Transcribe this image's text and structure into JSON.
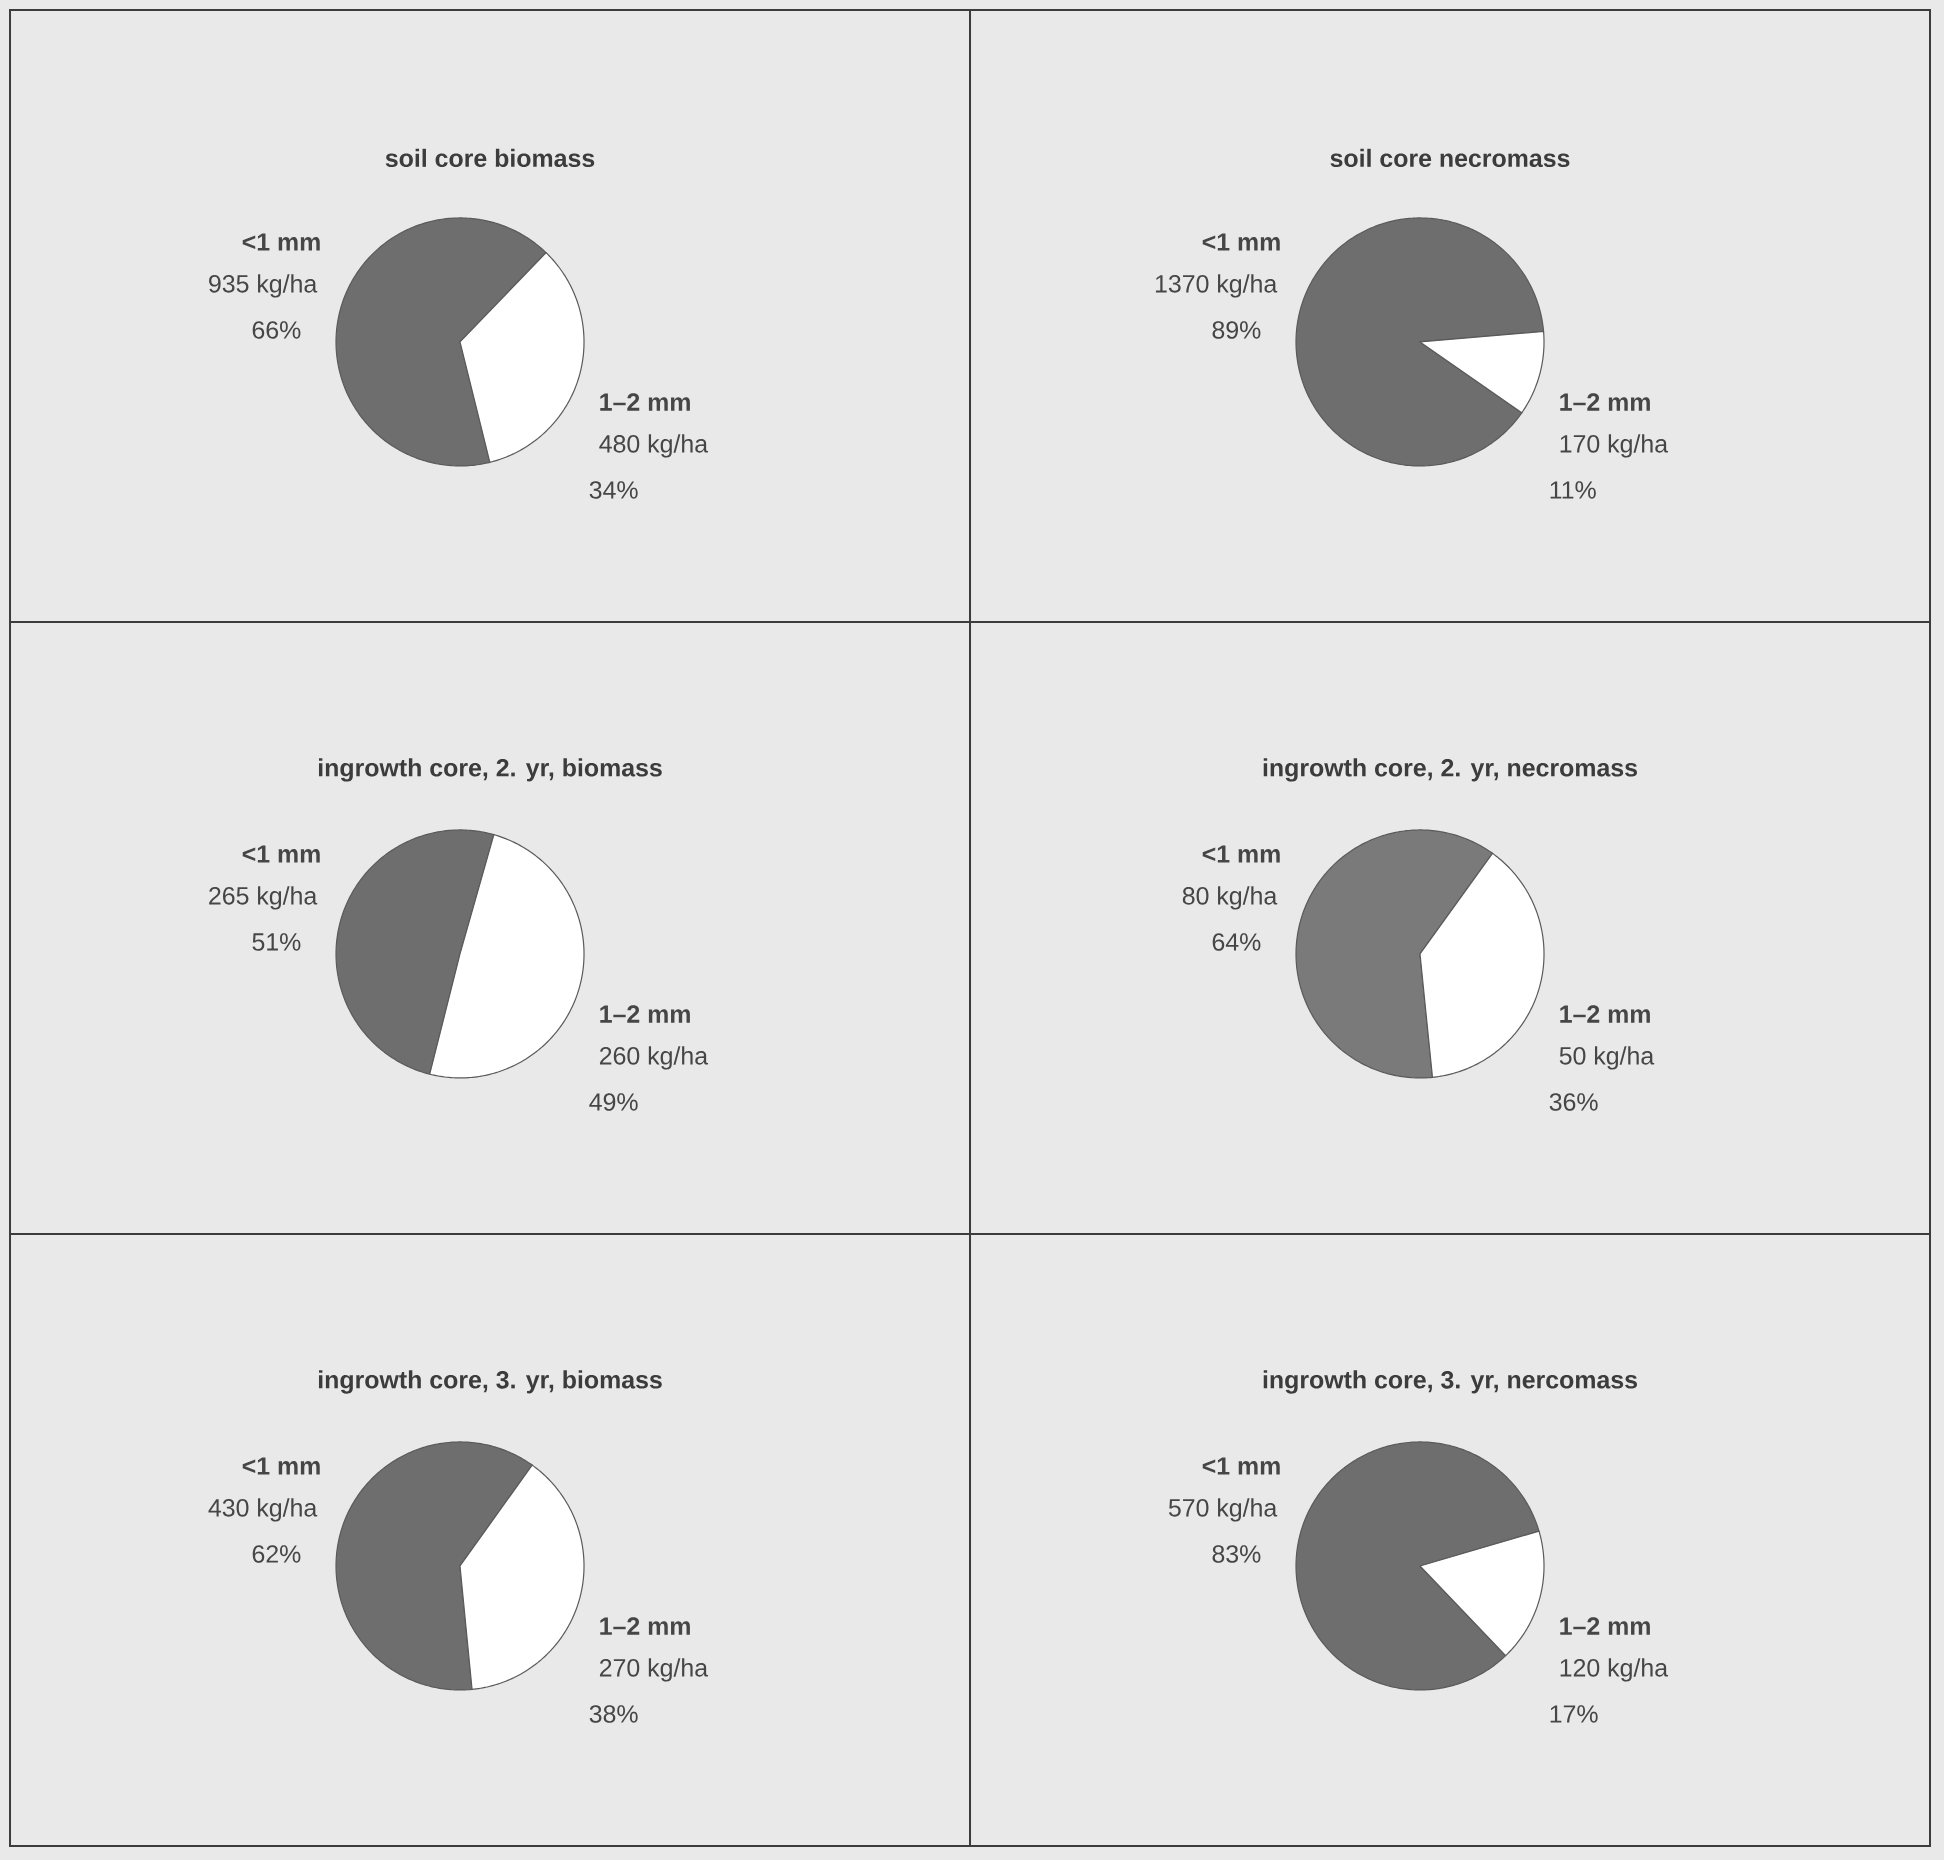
{
  "chart_data": [
    {
      "type": "pie",
      "title": "soil core biomass",
      "categories": [
        "<1 mm",
        "1–2 mm"
      ],
      "values": [
        935,
        480
      ],
      "colors": [
        "#6e6e6e",
        "#ffffff"
      ],
      "value_labels": [
        "935 kg/ha",
        "480 kg/ha"
      ],
      "annotations": [
        "66%",
        "34%"
      ]
    },
    {
      "type": "pie",
      "title": "soil core necromass",
      "categories": [
        "<1 mm",
        "1–2 mm"
      ],
      "values": [
        1370,
        170
      ],
      "colors": [
        "#6e6e6e",
        "#ffffff"
      ],
      "value_labels": [
        "1370 kg/ha",
        "170 kg/ha"
      ],
      "annotations": [
        "89%",
        "11%"
      ]
    },
    {
      "type": "pie",
      "title": "ingrowth core, 2. yr, biomass",
      "categories": [
        "<1 mm",
        "1–2 mm"
      ],
      "values": [
        265,
        260
      ],
      "colors": [
        "#6e6e6e",
        "#ffffff"
      ],
      "value_labels": [
        "265 kg/ha",
        "260 kg/ha"
      ],
      "annotations": [
        "51%",
        "49%"
      ]
    },
    {
      "type": "pie",
      "title": "ingrowth core, 2. yr, necromass",
      "categories": [
        "<1 mm",
        "1–2 mm"
      ],
      "values": [
        80,
        50
      ],
      "colors": [
        "#7a7a7a",
        "#ffffff"
      ],
      "value_labels": [
        "80 kg/ha",
        "50 kg/ha"
      ],
      "annotations": [
        "64%",
        "36%"
      ]
    },
    {
      "type": "pie",
      "title": "ingrowth core, 3. yr, biomass",
      "categories": [
        "<1 mm",
        "1–2 mm"
      ],
      "values": [
        430,
        270
      ],
      "colors": [
        "#6e6e6e",
        "#ffffff"
      ],
      "value_labels": [
        "430 kg/ha",
        "270 kg/ha"
      ],
      "annotations": [
        "62%",
        "38%"
      ]
    },
    {
      "type": "pie",
      "title": "ingrowth core, 3. yr, nercomass",
      "categories": [
        "<1 mm",
        "1–2 mm"
      ],
      "values": [
        570,
        120
      ],
      "colors": [
        "#6e6e6e",
        "#ffffff"
      ],
      "value_labels": [
        "570 kg/ha",
        "120 kg/ha"
      ],
      "annotations": [
        "83%",
        "17%"
      ]
    }
  ]
}
